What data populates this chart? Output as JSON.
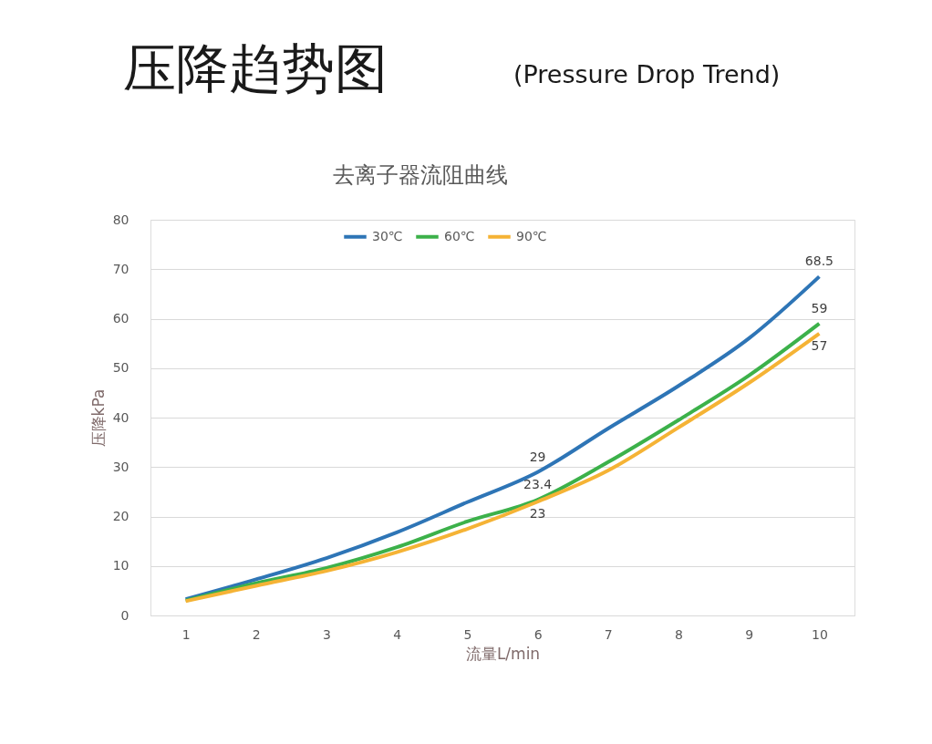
{
  "chart_data": {
    "type": "line",
    "title": "压降趋势图",
    "subtitle": "(Pressure Drop Trend)",
    "annotations": [
      "去离子器流阻曲线"
    ],
    "xlabel": "流量L/min",
    "ylabel": "压降kPa",
    "categories": [
      "1",
      "2",
      "3",
      "4",
      "5",
      "6",
      "7",
      "8",
      "9",
      "10"
    ],
    "series": [
      {
        "name": "30℃",
        "color": "#2e75b6",
        "values": [
          3.3,
          7.3,
          11.6,
          16.8,
          22.9,
          29,
          37.8,
          46.4,
          56,
          68.5
        ],
        "value_labels": [
          null,
          null,
          null,
          null,
          null,
          "29",
          null,
          null,
          null,
          "68.5"
        ]
      },
      {
        "name": "60℃",
        "color": "#3cb14a",
        "values": [
          3.0,
          6.5,
          9.6,
          13.8,
          19,
          23.4,
          31,
          39.5,
          48.5,
          59
        ],
        "value_labels": [
          null,
          null,
          null,
          null,
          null,
          "23.4",
          null,
          null,
          null,
          "59"
        ]
      },
      {
        "name": "90℃",
        "color": "#f5b335",
        "values": [
          2.9,
          6.0,
          9.0,
          12.8,
          17.5,
          23,
          29.3,
          38,
          47,
          57
        ],
        "value_labels": [
          null,
          null,
          null,
          null,
          null,
          "23",
          null,
          null,
          null,
          "57"
        ]
      }
    ],
    "ylim": [
      0,
      80
    ],
    "yticks": [
      0,
      10,
      20,
      30,
      40,
      50,
      60,
      70,
      80
    ],
    "grid": "y",
    "legend": "top",
    "marker": "none",
    "line_style": "solid"
  }
}
